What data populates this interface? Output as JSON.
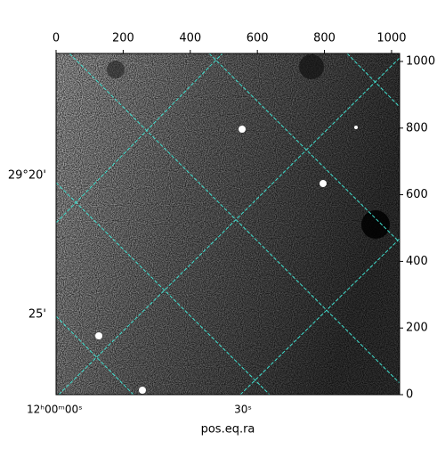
{
  "chart_data": {
    "type": "image",
    "xlim": [
      0,
      1024
    ],
    "ylim": [
      0,
      1024
    ],
    "xticks": [
      0,
      200,
      400,
      600,
      800,
      1000
    ],
    "yticks": [
      0,
      200,
      400,
      600,
      800,
      1000
    ],
    "ra_tick_labels": [
      "12ʰ00ᵐ00ˢ",
      "30ˢ"
    ],
    "dec_tick_labels": [
      "29°20'",
      "25'"
    ],
    "xlabel": "pos.eq.ra",
    "grid_color": "#40e0d0"
  }
}
